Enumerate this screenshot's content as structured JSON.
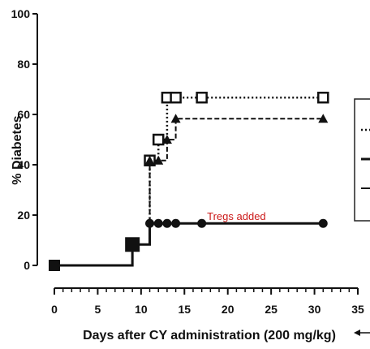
{
  "chart_data": {
    "type": "line",
    "ylabel": "% Diabetes",
    "xlabel": "Days after CY administration (200 mg/kg)",
    "xlim": [
      0,
      35
    ],
    "ylim": [
      0,
      100
    ],
    "x_ticks": [
      0,
      5,
      10,
      15,
      20,
      25,
      30,
      35
    ],
    "y_ticks": [
      0,
      20,
      40,
      60,
      80,
      100
    ],
    "series": [
      {
        "marker": "open-square",
        "line_style": "dotted",
        "x": [
          0,
          9,
          11,
          12,
          13,
          14,
          17,
          31
        ],
        "y": [
          0,
          8.3,
          41.7,
          50,
          66.7,
          66.7,
          66.7,
          66.7
        ]
      },
      {
        "marker": "triangle",
        "line_style": "dashed",
        "x": [
          0,
          9,
          11,
          12,
          13,
          14,
          31
        ],
        "y": [
          0,
          8.3,
          41.7,
          41.7,
          50,
          58.3,
          58.3
        ]
      },
      {
        "marker": "circle",
        "line_style": "solid",
        "x": [
          0,
          9,
          11,
          12,
          13,
          14,
          17,
          31
        ],
        "y": [
          0,
          8.3,
          16.7,
          16.7,
          16.7,
          16.7,
          16.7,
          16.7
        ]
      }
    ],
    "annotations": [
      {
        "text": "Tregs added",
        "x": 21,
        "y": 18,
        "color": "#cc1a1a"
      }
    ]
  }
}
